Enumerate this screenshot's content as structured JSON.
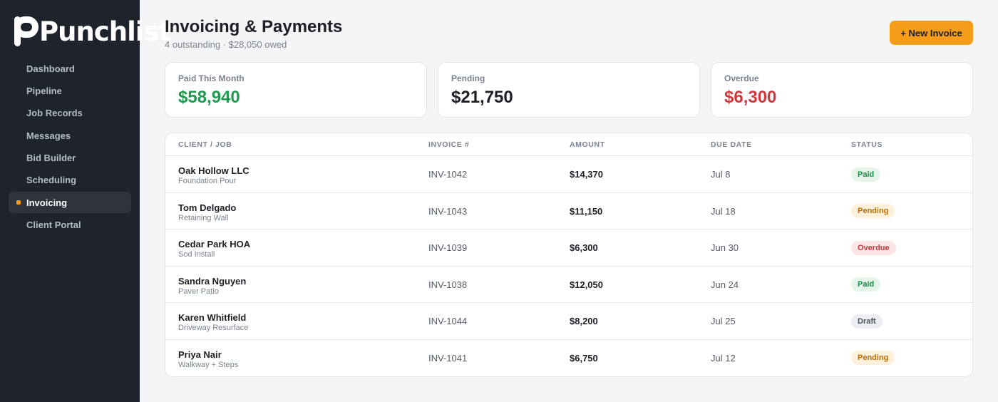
{
  "app": {
    "brand": "Punchlist"
  },
  "sidebar": {
    "items": [
      {
        "label": "Dashboard",
        "active": false
      },
      {
        "label": "Pipeline",
        "active": false
      },
      {
        "label": "Job Records",
        "active": false
      },
      {
        "label": "Messages",
        "active": false
      },
      {
        "label": "Bid Builder",
        "active": false
      },
      {
        "label": "Scheduling",
        "active": false
      },
      {
        "label": "Invoicing",
        "active": true
      },
      {
        "label": "Client Portal",
        "active": false
      }
    ]
  },
  "header": {
    "title": "Invoicing & Payments",
    "subtitle": "4 outstanding · $28,050 owed",
    "new_button_label": "+ New Invoice"
  },
  "summary": [
    {
      "label": "Paid This Month",
      "value": "$58,940",
      "color": "#1f9a4f"
    },
    {
      "label": "Pending",
      "value": "$21,750",
      "color": "#1c1f26"
    },
    {
      "label": "Overdue",
      "value": "$6,300",
      "color": "#d0393b"
    }
  ],
  "table": {
    "columns": [
      "CLIENT / JOB",
      "INVOICE #",
      "AMOUNT",
      "DUE DATE",
      "STATUS"
    ],
    "rows": [
      {
        "client": "Oak Hollow LLC",
        "job": "Foundation Pour",
        "invoice": "INV-1042",
        "amount": "$14,370",
        "due": "Jul 8",
        "status": "Paid",
        "status_type": "paid"
      },
      {
        "client": "Tom Delgado",
        "job": "Retaining Wall",
        "invoice": "INV-1043",
        "amount": "$11,150",
        "due": "Jul 18",
        "status": "Pending",
        "status_type": "pending"
      },
      {
        "client": "Cedar Park HOA",
        "job": "Sod Install",
        "invoice": "INV-1039",
        "amount": "$6,300",
        "due": "Jun 30",
        "status": "Overdue",
        "status_type": "overdue"
      },
      {
        "client": "Sandra Nguyen",
        "job": "Paver Patio",
        "invoice": "INV-1038",
        "amount": "$12,050",
        "due": "Jun 24",
        "status": "Paid",
        "status_type": "paid"
      },
      {
        "client": "Karen Whitfield",
        "job": "Driveway Resurface",
        "invoice": "INV-1044",
        "amount": "$8,200",
        "due": "Jul 25",
        "status": "Draft",
        "status_type": "draft"
      },
      {
        "client": "Priya Nair",
        "job": "Walkway + Steps",
        "invoice": "INV-1041",
        "amount": "$6,750",
        "due": "Jul 12",
        "status": "Pending",
        "status_type": "pending"
      }
    ]
  },
  "colors": {
    "accent": "#f59c1a",
    "sidebar_bg": "#1f232b"
  }
}
